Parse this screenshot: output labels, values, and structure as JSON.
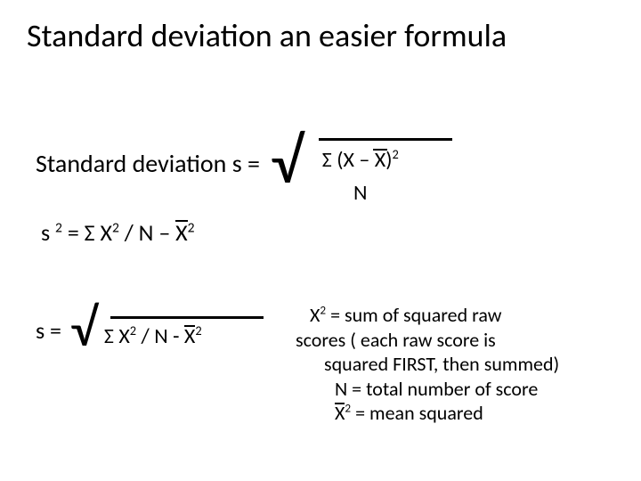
{
  "title": "Standard deviation an easier formula",
  "row1": {
    "label": "Standard deviation   s =",
    "numerator_prefix": "Σ (X – ",
    "numerator_xbar": "X",
    "numerator_suffix": ")",
    "numerator_exp": "2",
    "denominator": "N"
  },
  "row2": {
    "s": "s ",
    "s_exp": "2",
    "mid": "  = Σ X",
    "x_exp": "2",
    "slashN": " / N    – ",
    "xbar": "X",
    "xbar_exp": "2"
  },
  "row3": {
    "s_eq": "s =",
    "rad_prefix": "Σ X",
    "rad_x_exp": "2",
    "rad_mid": " / N  -  ",
    "rad_xbar": "X",
    "rad_xbar_exp": "2"
  },
  "defs": {
    "l1a": "X",
    "l1a_exp": "2",
    "l1b": "  = sum of squared raw",
    "l2": "scores  ( each raw score is",
    "l3": "squared FIRST, then summed)",
    "l4": "N  = total number of score",
    "l5a": "X",
    "l5a_exp": "2",
    "l5b": " = mean squared"
  },
  "colors": {
    "text": "#000000",
    "background": "#ffffff"
  },
  "typography": {
    "title_fontsize": 36,
    "body_fontsize": 26,
    "defs_fontsize": 22,
    "font_family": "Calibri"
  }
}
